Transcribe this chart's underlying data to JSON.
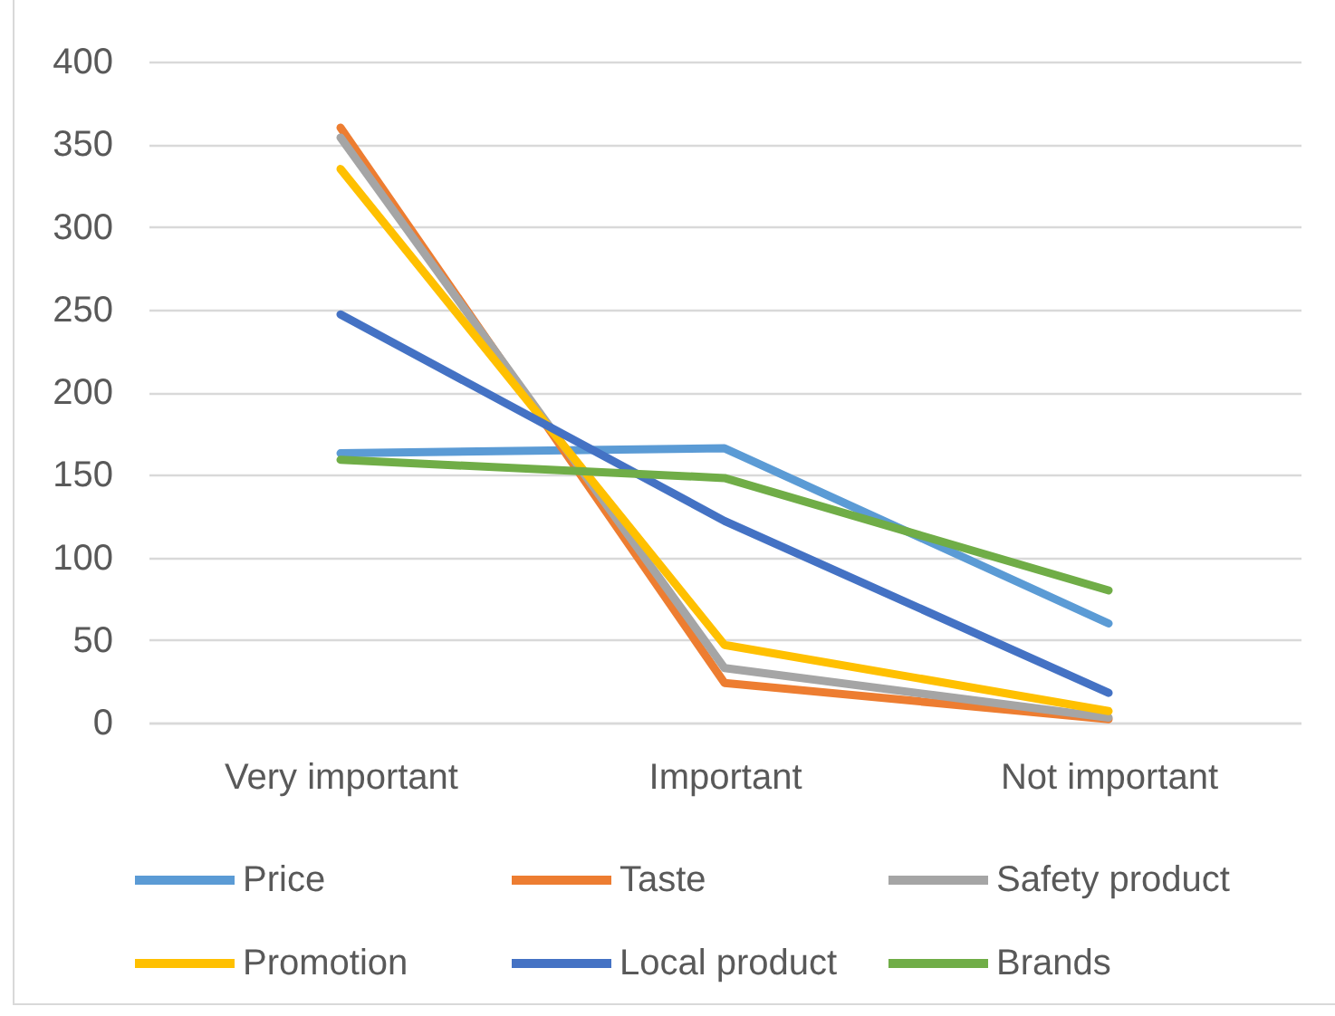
{
  "chart_data": {
    "type": "line",
    "categories": [
      "Very important",
      "Important",
      "Not important"
    ],
    "series": [
      {
        "name": "Price",
        "color": "#5b9bd5",
        "values": [
          163,
          166,
          60
        ]
      },
      {
        "name": "Taste",
        "color": "#ed7d31",
        "values": [
          360,
          24,
          2
        ]
      },
      {
        "name": "Safety product",
        "color": "#a5a5a5",
        "values": [
          354,
          33,
          3
        ]
      },
      {
        "name": "Promotion",
        "color": "#ffc000",
        "values": [
          335,
          47,
          7
        ]
      },
      {
        "name": "Local product",
        "color": "#4472c4",
        "values": [
          247,
          122,
          18
        ]
      },
      {
        "name": "Brands",
        "color": "#70ad47",
        "values": [
          159,
          148,
          80
        ]
      }
    ],
    "ylim": [
      0,
      400
    ],
    "yticks": [
      0,
      50,
      100,
      150,
      200,
      250,
      300,
      350,
      400
    ],
    "grid": "y",
    "legend": "bottom"
  }
}
